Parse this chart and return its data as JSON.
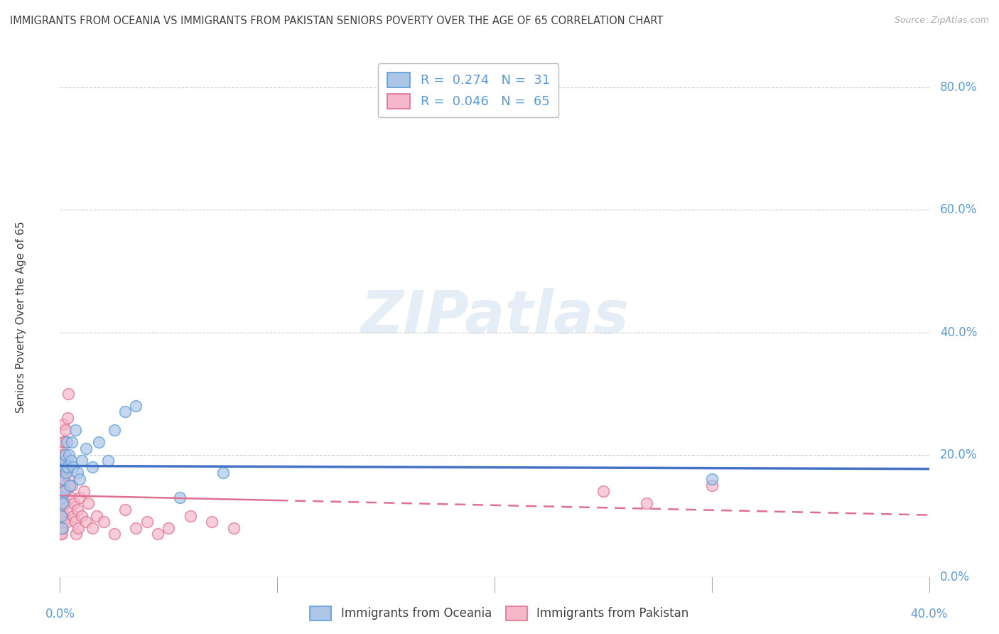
{
  "title": "IMMIGRANTS FROM OCEANIA VS IMMIGRANTS FROM PAKISTAN SENIORS POVERTY OVER THE AGE OF 65 CORRELATION CHART",
  "source": "Source: ZipAtlas.com",
  "ylabel": "Seniors Poverty Over the Age of 65",
  "ytick_vals": [
    0.0,
    20.0,
    40.0,
    60.0,
    80.0
  ],
  "r_oceania": 0.274,
  "n_oceania": 31,
  "r_pakistan": 0.046,
  "n_pakistan": 65,
  "color_oceania_fill": "#adc6e8",
  "color_oceania_edge": "#5b9bd5",
  "color_pakistan_fill": "#f5b8ca",
  "color_pakistan_edge": "#e07090",
  "color_line_oceania": "#4472c4",
  "color_line_pakistan": "#e07090",
  "legend_label_oceania": "Immigrants from Oceania",
  "legend_label_pakistan": "Immigrants from Pakistan",
  "oceania_x": [
    0.05,
    0.08,
    0.1,
    0.12,
    0.15,
    0.18,
    0.2,
    0.22,
    0.25,
    0.28,
    0.3,
    0.35,
    0.4,
    0.45,
    0.5,
    0.55,
    0.6,
    0.7,
    0.8,
    0.9,
    1.0,
    1.2,
    1.5,
    1.8,
    2.2,
    2.5,
    3.0,
    3.5,
    5.5,
    7.5,
    30.0
  ],
  "oceania_y": [
    10.0,
    13.0,
    8.0,
    12.0,
    16.0,
    18.0,
    14.0,
    19.0,
    20.0,
    17.0,
    22.0,
    18.0,
    20.0,
    15.0,
    19.0,
    22.0,
    18.0,
    24.0,
    17.0,
    16.0,
    19.0,
    21.0,
    18.0,
    22.0,
    19.0,
    24.0,
    27.0,
    28.0,
    13.0,
    17.0,
    16.0
  ],
  "pakistan_x": [
    0.02,
    0.03,
    0.04,
    0.05,
    0.05,
    0.06,
    0.07,
    0.07,
    0.08,
    0.08,
    0.09,
    0.09,
    0.1,
    0.1,
    0.11,
    0.12,
    0.13,
    0.13,
    0.14,
    0.15,
    0.16,
    0.17,
    0.18,
    0.19,
    0.2,
    0.21,
    0.22,
    0.23,
    0.25,
    0.27,
    0.28,
    0.3,
    0.32,
    0.35,
    0.38,
    0.4,
    0.45,
    0.5,
    0.55,
    0.6,
    0.65,
    0.7,
    0.75,
    0.8,
    0.85,
    0.9,
    1.0,
    1.1,
    1.2,
    1.3,
    1.5,
    1.7,
    2.0,
    2.5,
    3.0,
    3.5,
    4.0,
    4.5,
    5.0,
    6.0,
    7.0,
    8.0,
    25.0,
    27.0,
    30.0
  ],
  "pakistan_y": [
    9.0,
    7.0,
    8.0,
    14.0,
    11.0,
    10.0,
    16.0,
    12.0,
    18.0,
    14.0,
    7.0,
    11.0,
    20.0,
    15.0,
    22.0,
    8.0,
    17.0,
    13.0,
    9.0,
    25.0,
    19.0,
    14.0,
    22.0,
    10.0,
    16.0,
    20.0,
    17.0,
    12.0,
    24.0,
    18.0,
    14.0,
    22.0,
    9.0,
    26.0,
    30.0,
    16.0,
    11.0,
    13.0,
    15.0,
    10.0,
    12.0,
    9.0,
    7.0,
    11.0,
    8.0,
    13.0,
    10.0,
    14.0,
    9.0,
    12.0,
    8.0,
    10.0,
    9.0,
    7.0,
    11.0,
    8.0,
    9.0,
    7.0,
    8.0,
    10.0,
    9.0,
    8.0,
    14.0,
    12.0,
    15.0
  ],
  "xmin": 0.0,
  "xmax": 40.0,
  "ymin": 0.0,
  "ymax": 85.0,
  "background_color": "#ffffff",
  "grid_color": "#cccccc",
  "title_color": "#404040",
  "tick_color": "#5b9bd5"
}
